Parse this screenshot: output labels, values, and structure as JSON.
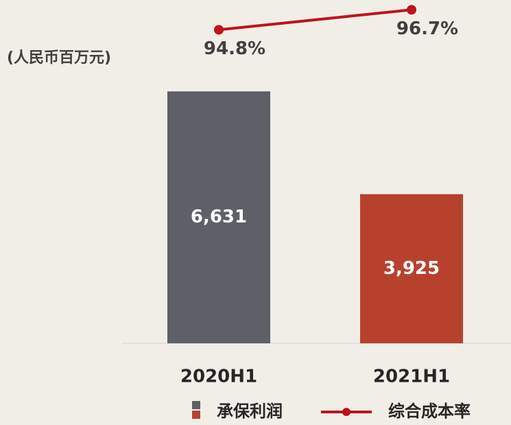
{
  "chart_data": {
    "type": "bar-line",
    "y_label": "(人民币百万元)",
    "categories": [
      "2020H1",
      "2021H1"
    ],
    "ylim": [
      0,
      9000
    ],
    "y2lim": [
      65,
      97.5
    ],
    "series": [
      {
        "name": "承保利润",
        "type": "bar",
        "colors": [
          "#5e6068",
          "#b8412e"
        ],
        "values": [
          6631,
          3925
        ],
        "value_labels": [
          "6,631",
          "3,925"
        ]
      },
      {
        "name": "综合成本率",
        "type": "line",
        "axis": "y2",
        "color": "#c0121c",
        "values": [
          94.8,
          96.7
        ],
        "value_labels": [
          "94.8%",
          "96.7%"
        ]
      }
    ]
  }
}
